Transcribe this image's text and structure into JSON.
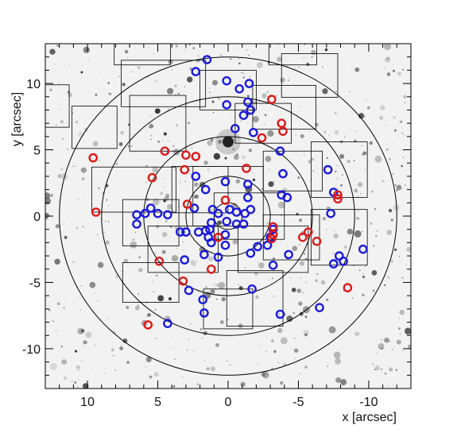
{
  "chart_data": {
    "type": "scatter",
    "xlabel": "x [arcsec]",
    "ylabel": "y [arcsec]",
    "xlim": [
      13,
      -13
    ],
    "ylim": [
      -13,
      13
    ],
    "xticks": [
      10,
      5,
      0,
      -5,
      -10
    ],
    "yticks": [
      10,
      5,
      0,
      -5,
      -10
    ],
    "background": "greyscale star-field image",
    "circles_radius_arcsec": [
      1,
      3,
      6,
      9,
      12
    ],
    "fields": [
      [
        6.1,
        13,
        4,
        3.2
      ],
      [
        -4.6,
        13,
        3.4,
        3.2
      ],
      [
        4.6,
        10,
        6,
        3.5
      ],
      [
        -5.8,
        10.6,
        4,
        3.3
      ],
      [
        0,
        9.5,
        4,
        3
      ],
      [
        -4,
        8.2,
        4.5,
        3.3
      ],
      [
        12.8,
        8.3,
        3,
        3.2
      ],
      [
        9.5,
        6.7,
        3.2,
        3.2
      ],
      [
        -2.5,
        7,
        4,
        3
      ],
      [
        5,
        7,
        4,
        4.2
      ],
      [
        -4.6,
        3.4,
        4.2,
        3
      ],
      [
        -7.9,
        3.5,
        4,
        4.2
      ],
      [
        6.7,
        2,
        6,
        3.4
      ],
      [
        0,
        1.5,
        5,
        4.5
      ],
      [
        2,
        2,
        4,
        3.5
      ],
      [
        -1.5,
        0,
        5,
        3.5
      ],
      [
        5.5,
        -0.5,
        4,
        3.5
      ],
      [
        3.2,
        -2.5,
        5,
        3.5
      ],
      [
        -3.2,
        -2.5,
        5,
        3.5
      ],
      [
        -4.5,
        -1.6,
        4,
        3.4
      ],
      [
        -7.9,
        -1.6,
        4,
        4.2
      ],
      [
        5.5,
        -5,
        4,
        3
      ],
      [
        -1.9,
        -6.2,
        4,
        4.2
      ],
      [
        0,
        -7,
        3.5,
        3
      ]
    ],
    "series": [
      {
        "color": "#1a1adc",
        "points": [
          [
            1.5,
            11.8
          ],
          [
            2.3,
            10.9
          ],
          [
            0.1,
            10.2
          ],
          [
            -1.5,
            10
          ],
          [
            -0.8,
            9.6
          ],
          [
            -1.4,
            8.6
          ],
          [
            0.1,
            8.4
          ],
          [
            -1.6,
            8
          ],
          [
            -1.1,
            7.6
          ],
          [
            -0.5,
            6.6
          ],
          [
            -1.8,
            6.3
          ],
          [
            -3.7,
            4.9
          ],
          [
            2.3,
            3
          ],
          [
            -3.9,
            3.2
          ],
          [
            0.2,
            2.6
          ],
          [
            -1.4,
            2.4
          ],
          [
            1.6,
            2
          ],
          [
            -3.8,
            1.6
          ],
          [
            -4.2,
            1.4
          ],
          [
            -1.4,
            1.4
          ],
          [
            -7.1,
            3.5
          ],
          [
            -7.5,
            1.8
          ],
          [
            -7.3,
            0.2
          ],
          [
            6.5,
            0.1
          ],
          [
            5.5,
            0.6
          ],
          [
            5.9,
            0.2
          ],
          [
            5,
            0.2
          ],
          [
            4.3,
            0.1
          ],
          [
            6.5,
            -0.6
          ],
          [
            2.4,
            0.6
          ],
          [
            1.1,
            0.5
          ],
          [
            0.7,
            0.2
          ],
          [
            -0.1,
            0.5
          ],
          [
            -0.6,
            0.3
          ],
          [
            -1.2,
            0.2
          ],
          [
            -1.6,
            0.5
          ],
          [
            0.1,
            -0.4
          ],
          [
            -0.6,
            -0.6
          ],
          [
            -1.1,
            -0.6
          ],
          [
            1.2,
            -0.5
          ],
          [
            3.4,
            -1.2
          ],
          [
            3,
            -1.2
          ],
          [
            1.6,
            -1.1
          ],
          [
            1.4,
            -1.6
          ],
          [
            1.2,
            -2
          ],
          [
            2.1,
            -1.2
          ],
          [
            1.3,
            -1
          ],
          [
            0.2,
            -1.4
          ],
          [
            -3.2,
            -1
          ],
          [
            -3,
            -1.6
          ],
          [
            -2.8,
            -2.2
          ],
          [
            0.2,
            -2.2
          ],
          [
            -1.6,
            -2.8
          ],
          [
            -2.1,
            -2.3
          ],
          [
            -4.3,
            -2.9
          ],
          [
            -3.2,
            -3.7
          ],
          [
            1.7,
            -2.9
          ],
          [
            0.7,
            -3.1
          ],
          [
            3.1,
            -3.3
          ],
          [
            -7.9,
            -3
          ],
          [
            -8.2,
            -3.4
          ],
          [
            -7.5,
            -3.6
          ],
          [
            -9.6,
            -2.5
          ],
          [
            1.8,
            -6.3
          ],
          [
            -1.7,
            -5.5
          ],
          [
            2.8,
            -5.6
          ],
          [
            1.7,
            -7.3
          ],
          [
            -3.7,
            -7.4
          ],
          [
            -6.5,
            -6.9
          ],
          [
            4.3,
            -8.1
          ]
        ]
      },
      {
        "color": "#dc1a1a",
        "points": [
          [
            -3.1,
            8.8
          ],
          [
            -3.8,
            7
          ],
          [
            -3.9,
            6.4
          ],
          [
            -2.4,
            5.9
          ],
          [
            9.6,
            4.4
          ],
          [
            4.5,
            4.9
          ],
          [
            3,
            4.6
          ],
          [
            2.3,
            4.5
          ],
          [
            3.1,
            3.5
          ],
          [
            5.4,
            2.9
          ],
          [
            -1.3,
            3.6
          ],
          [
            0.2,
            1.2
          ],
          [
            2.9,
            0.9
          ],
          [
            -7.8,
            1.6
          ],
          [
            -7.8,
            1.3
          ],
          [
            9.4,
            0.3
          ],
          [
            -3.2,
            -0.8
          ],
          [
            -3.2,
            -1.4
          ],
          [
            -3.1,
            -1.7
          ],
          [
            -5.3,
            -1.6
          ],
          [
            -5.7,
            -1.2
          ],
          [
            -6.3,
            -1.9
          ],
          [
            0.7,
            -1.6
          ],
          [
            4.9,
            -3.4
          ],
          [
            3.2,
            -4.9
          ],
          [
            1.2,
            -4
          ],
          [
            -8.5,
            -5.4
          ],
          [
            5.7,
            -8.2
          ]
        ]
      }
    ]
  }
}
